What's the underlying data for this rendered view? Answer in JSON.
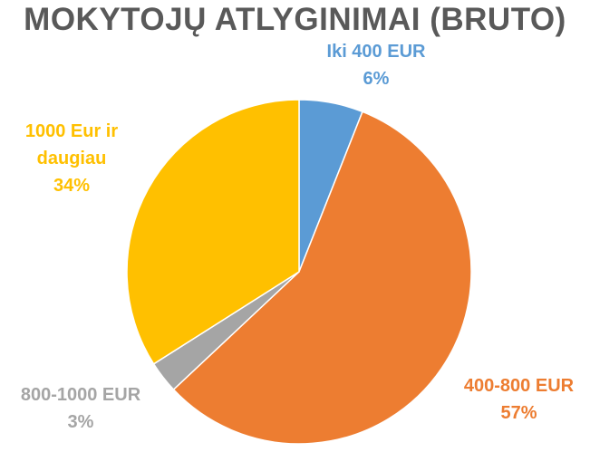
{
  "chart_data": {
    "type": "pie",
    "title": "MOKYTOJŲ ATLYGINIMAI (BRUTO)",
    "categories": [
      "Iki 400 EUR",
      "400-800 EUR",
      "800-1000 EUR",
      "1000 Eur ir daugiau"
    ],
    "values": [
      6,
      57,
      3,
      34
    ],
    "value_labels": [
      "6%",
      "57%",
      "3%",
      "34%"
    ],
    "colors": [
      "#5b9bd5",
      "#ed7d31",
      "#a5a5a5",
      "#ffc000"
    ]
  }
}
